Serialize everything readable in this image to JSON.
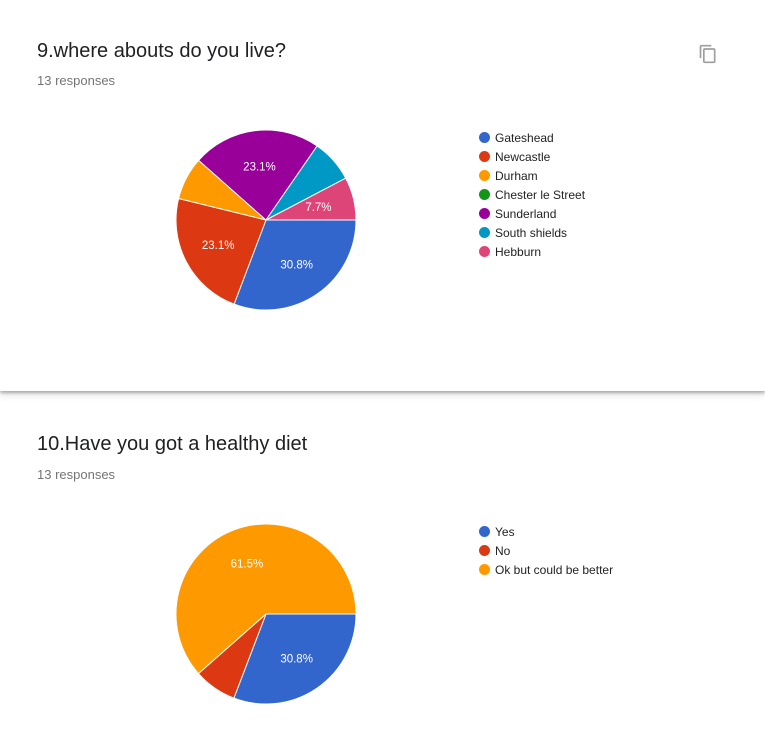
{
  "questions": [
    {
      "title": "9.where abouts do you live?",
      "responses": "13 responses",
      "copy_icon": "copy-icon",
      "chart_data": {
        "type": "pie",
        "categories": [
          "Gateshead",
          "Newcastle",
          "Durham",
          "Chester le Street",
          "Sunderland",
          "South shields",
          "Hebburn"
        ],
        "values": [
          30.8,
          23.1,
          7.7,
          0,
          23.1,
          7.7,
          7.7
        ],
        "slice_labels": [
          "30.8%",
          "23.1%",
          "",
          "",
          "23.1%",
          "",
          "7.7%"
        ],
        "colors": [
          "#3366cc",
          "#dc3912",
          "#ff9900",
          "#109618",
          "#990099",
          "#0099c6",
          "#dd4477"
        ],
        "legend_position": "right"
      }
    },
    {
      "title": "10.Have you got a healthy diet",
      "responses": "13 responses",
      "chart_data": {
        "type": "pie",
        "categories": [
          "Yes",
          "No",
          "Ok but could be better"
        ],
        "values": [
          30.8,
          7.7,
          61.5
        ],
        "slice_labels": [
          "30.8%",
          "",
          "61.5%"
        ],
        "colors": [
          "#3366cc",
          "#dc3912",
          "#ff9900"
        ],
        "legend_position": "right"
      }
    }
  ]
}
